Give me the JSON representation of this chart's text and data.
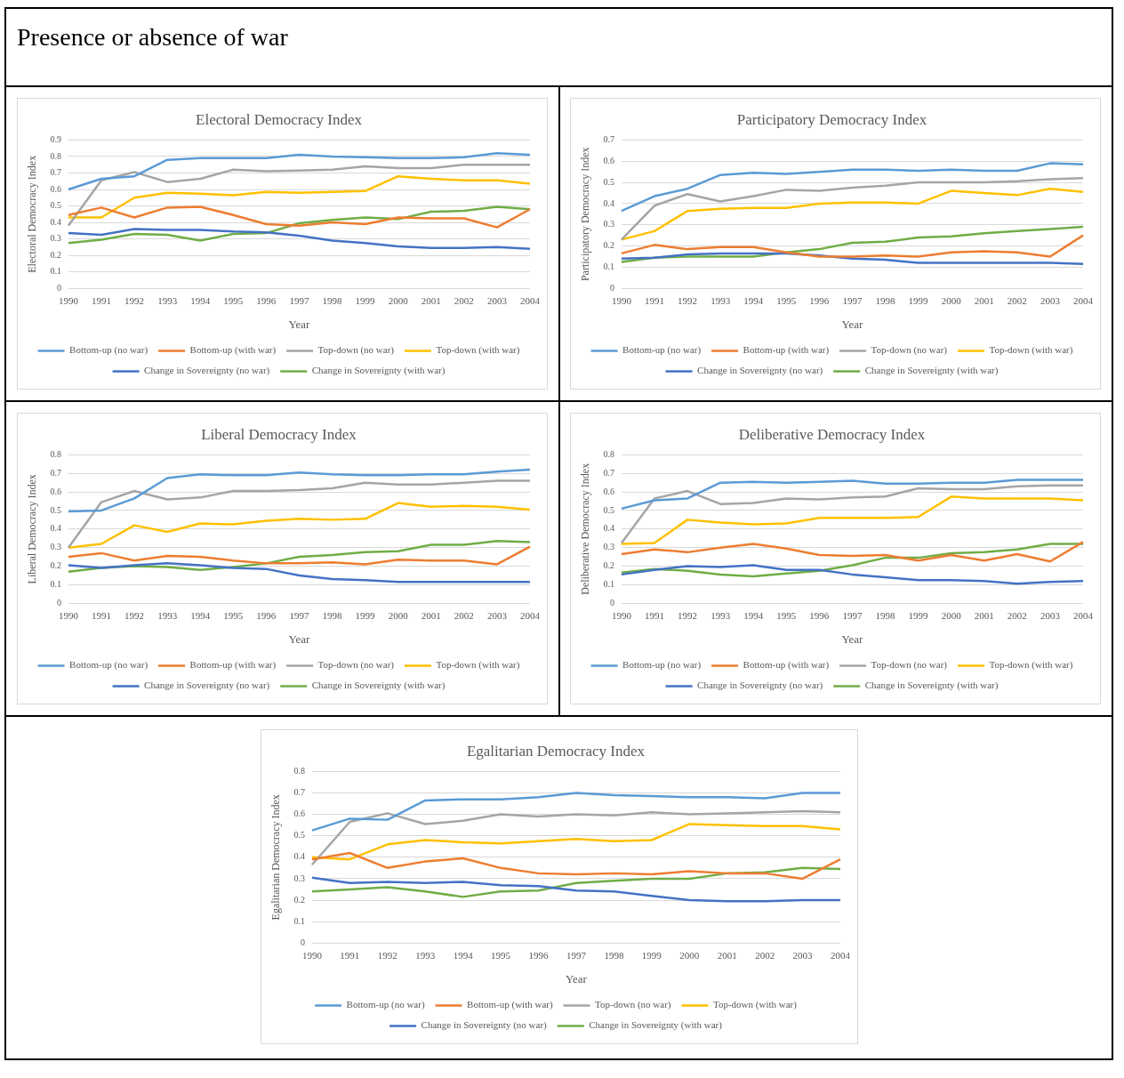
{
  "chart_data": [
    {
      "type": "other",
      "title": "Presence or absence of war"
    },
    {
      "type": "line",
      "title": "Electoral Democracy Index",
      "xlabel": "Year",
      "ylabel": "Electoral Democracy Index",
      "categories": [
        "1990",
        "1991",
        "1992",
        "1993",
        "1994",
        "1995",
        "1996",
        "1997",
        "1998",
        "1999",
        "2000",
        "2001",
        "2002",
        "2003",
        "2004"
      ],
      "ylim": [
        0,
        0.9
      ],
      "yticks": [
        0,
        0.1,
        0.2,
        0.3,
        0.4,
        0.5,
        0.6,
        0.7,
        0.8,
        0.9
      ],
      "grid": "y",
      "legend": "bottom",
      "marker": "none",
      "series": [
        {
          "name": "Bottom-up (no war)",
          "color": "#5b9bd5",
          "values": [
            0.6,
            0.665,
            0.68,
            0.78,
            0.79,
            0.79,
            0.79,
            0.81,
            0.8,
            0.795,
            0.79,
            0.79,
            0.795,
            0.82,
            0.81
          ]
        },
        {
          "name": "Bottom-up (with war)",
          "color": "#ed7d31",
          "values": [
            0.445,
            0.49,
            0.43,
            0.49,
            0.495,
            0.445,
            0.39,
            0.38,
            0.4,
            0.39,
            0.43,
            0.425,
            0.425,
            0.37,
            0.48
          ]
        },
        {
          "name": "Top-down (no war)",
          "color": "#a5a5a5",
          "values": [
            0.38,
            0.655,
            0.705,
            0.645,
            0.665,
            0.72,
            0.71,
            0.715,
            0.72,
            0.74,
            0.73,
            0.73,
            0.75,
            0.75,
            0.75
          ]
        },
        {
          "name": "Top-down (with war)",
          "color": "#ffc000",
          "values": [
            0.43,
            0.43,
            0.55,
            0.58,
            0.575,
            0.565,
            0.585,
            0.58,
            0.585,
            0.59,
            0.68,
            0.665,
            0.655,
            0.655,
            0.635
          ]
        },
        {
          "name": "Change in Sovereignty (no war)",
          "color": "#4472c4",
          "values": [
            0.335,
            0.325,
            0.36,
            0.355,
            0.355,
            0.345,
            0.34,
            0.32,
            0.29,
            0.275,
            0.255,
            0.245,
            0.245,
            0.25,
            0.24
          ]
        },
        {
          "name": "Change in Sovereignty (with war)",
          "color": "#70ad47",
          "values": [
            0.275,
            0.295,
            0.33,
            0.325,
            0.29,
            0.33,
            0.335,
            0.395,
            0.415,
            0.43,
            0.42,
            0.465,
            0.47,
            0.495,
            0.48
          ]
        }
      ]
    },
    {
      "type": "line",
      "title": "Participatory Democracy Index",
      "xlabel": "Year",
      "ylabel": "Participatory Democracy Index",
      "categories": [
        "1990",
        "1991",
        "1992",
        "1993",
        "1994",
        "1995",
        "1996",
        "1997",
        "1998",
        "1999",
        "2000",
        "2001",
        "2002",
        "2003",
        "2004"
      ],
      "ylim": [
        0,
        0.7
      ],
      "yticks": [
        0,
        0.1,
        0.2,
        0.3,
        0.4,
        0.5,
        0.6,
        0.7
      ],
      "grid": "y",
      "legend": "bottom",
      "marker": "none",
      "series": [
        {
          "name": "Bottom-up (no war)",
          "color": "#5b9bd5",
          "values": [
            0.365,
            0.435,
            0.47,
            0.535,
            0.545,
            0.54,
            0.55,
            0.56,
            0.56,
            0.555,
            0.56,
            0.555,
            0.555,
            0.59,
            0.585
          ]
        },
        {
          "name": "Bottom-up (with war)",
          "color": "#ed7d31",
          "values": [
            0.165,
            0.205,
            0.185,
            0.195,
            0.195,
            0.17,
            0.15,
            0.15,
            0.155,
            0.15,
            0.17,
            0.175,
            0.17,
            0.15,
            0.25
          ]
        },
        {
          "name": "Top-down (no war)",
          "color": "#a5a5a5",
          "values": [
            0.23,
            0.39,
            0.445,
            0.41,
            0.435,
            0.465,
            0.46,
            0.475,
            0.485,
            0.5,
            0.5,
            0.5,
            0.505,
            0.515,
            0.52
          ]
        },
        {
          "name": "Top-down (with war)",
          "color": "#ffc000",
          "values": [
            0.23,
            0.27,
            0.365,
            0.375,
            0.38,
            0.38,
            0.4,
            0.405,
            0.405,
            0.4,
            0.46,
            0.45,
            0.44,
            0.47,
            0.455
          ]
        },
        {
          "name": "Change in Sovereignty (no war)",
          "color": "#4472c4",
          "values": [
            0.14,
            0.145,
            0.16,
            0.165,
            0.165,
            0.165,
            0.155,
            0.14,
            0.135,
            0.12,
            0.12,
            0.12,
            0.12,
            0.12,
            0.115
          ]
        },
        {
          "name": "Change in Sovereignty (with war)",
          "color": "#70ad47",
          "values": [
            0.125,
            0.145,
            0.15,
            0.15,
            0.15,
            0.17,
            0.185,
            0.215,
            0.22,
            0.24,
            0.245,
            0.26,
            0.27,
            0.28,
            0.29
          ]
        }
      ]
    },
    {
      "type": "line",
      "title": "Liberal Democracy Index",
      "xlabel": "Year",
      "ylabel": "Liberal Democracy Index",
      "categories": [
        "1990",
        "1991",
        "1992",
        "1993",
        "1994",
        "1995",
        "1996",
        "1997",
        "1998",
        "1999",
        "2000",
        "2001",
        "2002",
        "2003",
        "2004"
      ],
      "ylim": [
        0,
        0.8
      ],
      "yticks": [
        0,
        0.1,
        0.2,
        0.3,
        0.4,
        0.5,
        0.6,
        0.7,
        0.8
      ],
      "grid": "y",
      "legend": "bottom",
      "marker": "none",
      "series": [
        {
          "name": "Bottom-up (no war)",
          "color": "#5b9bd5",
          "values": [
            0.495,
            0.5,
            0.565,
            0.675,
            0.695,
            0.69,
            0.69,
            0.705,
            0.695,
            0.69,
            0.69,
            0.695,
            0.695,
            0.71,
            0.72
          ]
        },
        {
          "name": "Bottom-up (with war)",
          "color": "#ed7d31",
          "values": [
            0.25,
            0.27,
            0.23,
            0.255,
            0.25,
            0.23,
            0.215,
            0.215,
            0.22,
            0.21,
            0.235,
            0.23,
            0.23,
            0.21,
            0.305
          ]
        },
        {
          "name": "Top-down (no war)",
          "color": "#a5a5a5",
          "values": [
            0.3,
            0.545,
            0.605,
            0.56,
            0.57,
            0.605,
            0.605,
            0.61,
            0.62,
            0.65,
            0.64,
            0.64,
            0.65,
            0.66,
            0.66
          ]
        },
        {
          "name": "Top-down (with war)",
          "color": "#ffc000",
          "values": [
            0.3,
            0.32,
            0.42,
            0.385,
            0.43,
            0.425,
            0.445,
            0.455,
            0.45,
            0.455,
            0.54,
            0.52,
            0.525,
            0.52,
            0.505
          ]
        },
        {
          "name": "Change in Sovereignty (no war)",
          "color": "#4472c4",
          "values": [
            0.205,
            0.19,
            0.205,
            0.215,
            0.205,
            0.19,
            0.185,
            0.15,
            0.13,
            0.125,
            0.115,
            0.115,
            0.115,
            0.115,
            0.115
          ]
        },
        {
          "name": "Change in Sovereignty (with war)",
          "color": "#70ad47",
          "values": [
            0.17,
            0.19,
            0.2,
            0.195,
            0.18,
            0.195,
            0.215,
            0.25,
            0.26,
            0.275,
            0.28,
            0.315,
            0.315,
            0.335,
            0.33
          ]
        }
      ]
    },
    {
      "type": "line",
      "title": "Deliberative Democracy Index",
      "xlabel": "Year",
      "ylabel": "Deliberative Democracy Index",
      "categories": [
        "1990",
        "1991",
        "1992",
        "1993",
        "1994",
        "1995",
        "1996",
        "1997",
        "1998",
        "1999",
        "2000",
        "2001",
        "2002",
        "2003",
        "2004"
      ],
      "ylim": [
        0,
        0.8
      ],
      "yticks": [
        0,
        0.1,
        0.2,
        0.3,
        0.4,
        0.5,
        0.6,
        0.7,
        0.8
      ],
      "grid": "y",
      "legend": "bottom",
      "marker": "none",
      "series": [
        {
          "name": "Bottom-up (no war)",
          "color": "#5b9bd5",
          "values": [
            0.51,
            0.555,
            0.565,
            0.65,
            0.655,
            0.65,
            0.655,
            0.66,
            0.645,
            0.645,
            0.65,
            0.65,
            0.665,
            0.665,
            0.665
          ]
        },
        {
          "name": "Bottom-up (with war)",
          "color": "#ed7d31",
          "values": [
            0.265,
            0.29,
            0.275,
            0.3,
            0.32,
            0.295,
            0.26,
            0.255,
            0.26,
            0.23,
            0.26,
            0.23,
            0.265,
            0.225,
            0.33
          ]
        },
        {
          "name": "Top-down (no war)",
          "color": "#a5a5a5",
          "values": [
            0.325,
            0.565,
            0.605,
            0.535,
            0.54,
            0.565,
            0.56,
            0.57,
            0.575,
            0.62,
            0.615,
            0.615,
            0.63,
            0.635,
            0.635
          ]
        },
        {
          "name": "Top-down (with war)",
          "color": "#ffc000",
          "values": [
            0.32,
            0.325,
            0.45,
            0.435,
            0.425,
            0.43,
            0.46,
            0.46,
            0.46,
            0.465,
            0.575,
            0.565,
            0.565,
            0.565,
            0.555
          ]
        },
        {
          "name": "Change in Sovereignty (no war)",
          "color": "#4472c4",
          "values": [
            0.155,
            0.18,
            0.2,
            0.195,
            0.205,
            0.18,
            0.18,
            0.155,
            0.14,
            0.125,
            0.125,
            0.12,
            0.105,
            0.115,
            0.12
          ]
        },
        {
          "name": "Change in Sovereignty (with war)",
          "color": "#70ad47",
          "values": [
            0.165,
            0.185,
            0.175,
            0.155,
            0.145,
            0.16,
            0.175,
            0.205,
            0.245,
            0.245,
            0.27,
            0.275,
            0.29,
            0.32,
            0.32
          ]
        }
      ]
    },
    {
      "type": "line",
      "title": "Egalitarian Democracy Index",
      "xlabel": "Year",
      "ylabel": "Egalitarian Democracy Index",
      "categories": [
        "1990",
        "1991",
        "1992",
        "1993",
        "1994",
        "1995",
        "1996",
        "1997",
        "1998",
        "1999",
        "2000",
        "2001",
        "2002",
        "2003",
        "2004"
      ],
      "ylim": [
        0,
        0.8
      ],
      "yticks": [
        0,
        0.1,
        0.2,
        0.3,
        0.4,
        0.5,
        0.6,
        0.7,
        0.8
      ],
      "grid": "y",
      "legend": "bottom",
      "marker": "none",
      "series": [
        {
          "name": "Bottom-up (no war)",
          "color": "#5b9bd5",
          "values": [
            0.525,
            0.58,
            0.575,
            0.665,
            0.67,
            0.67,
            0.68,
            0.7,
            0.69,
            0.685,
            0.68,
            0.68,
            0.675,
            0.7,
            0.7
          ]
        },
        {
          "name": "Bottom-up (with war)",
          "color": "#ed7d31",
          "values": [
            0.39,
            0.42,
            0.35,
            0.38,
            0.395,
            0.35,
            0.325,
            0.32,
            0.325,
            0.32,
            0.335,
            0.325,
            0.325,
            0.3,
            0.39
          ]
        },
        {
          "name": "Top-down (no war)",
          "color": "#a5a5a5",
          "values": [
            0.365,
            0.565,
            0.605,
            0.555,
            0.57,
            0.6,
            0.59,
            0.6,
            0.595,
            0.61,
            0.6,
            0.605,
            0.61,
            0.615,
            0.61
          ]
        },
        {
          "name": "Top-down (with war)",
          "color": "#ffc000",
          "values": [
            0.4,
            0.39,
            0.46,
            0.48,
            0.47,
            0.465,
            0.475,
            0.485,
            0.475,
            0.48,
            0.555,
            0.55,
            0.545,
            0.545,
            0.53
          ]
        },
        {
          "name": "Change in Sovereignty (no war)",
          "color": "#4472c4",
          "values": [
            0.305,
            0.28,
            0.285,
            0.28,
            0.285,
            0.27,
            0.265,
            0.245,
            0.24,
            0.22,
            0.2,
            0.195,
            0.195,
            0.2,
            0.2
          ]
        },
        {
          "name": "Change in Sovereignty (with war)",
          "color": "#70ad47",
          "values": [
            0.24,
            0.25,
            0.26,
            0.24,
            0.215,
            0.24,
            0.245,
            0.28,
            0.29,
            0.3,
            0.3,
            0.325,
            0.33,
            0.35,
            0.345
          ]
        }
      ]
    }
  ]
}
